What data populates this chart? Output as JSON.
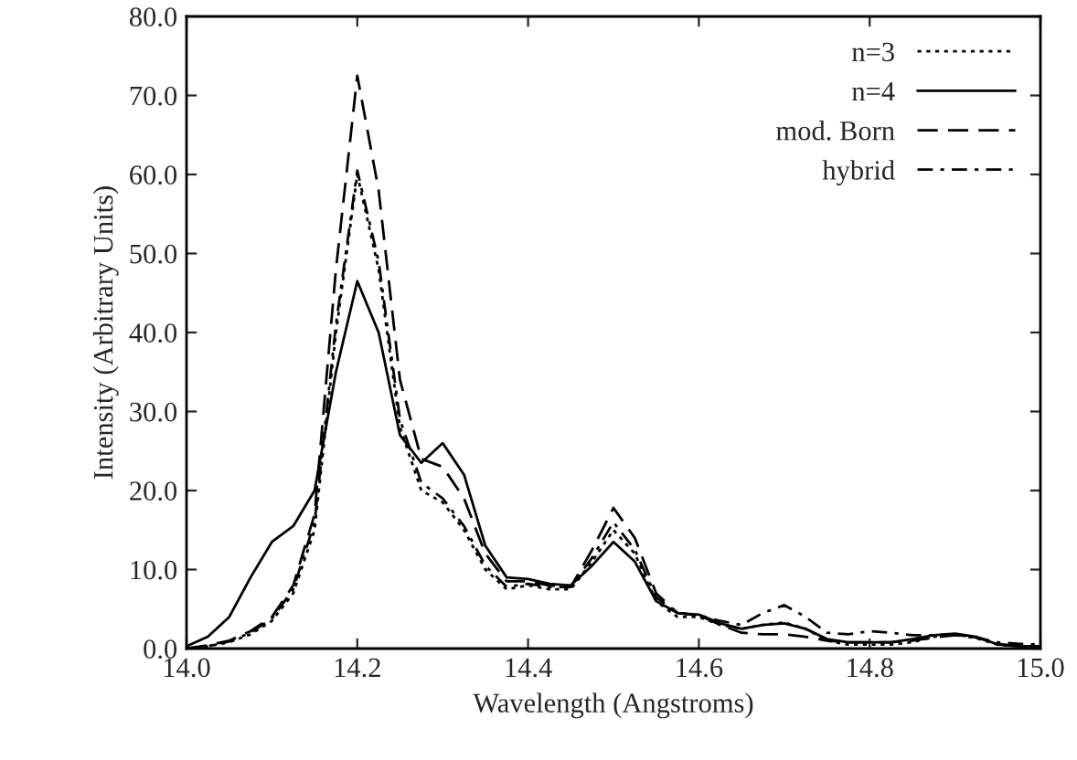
{
  "chart_data": {
    "type": "line",
    "xlabel": "Wavelength (Angstroms)",
    "ylabel": "Intensity (Arbitrary Units)",
    "x": [
      14.0,
      14.025,
      14.05,
      14.075,
      14.1,
      14.125,
      14.15,
      14.175,
      14.2,
      14.225,
      14.25,
      14.275,
      14.3,
      14.325,
      14.35,
      14.375,
      14.4,
      14.425,
      14.45,
      14.475,
      14.5,
      14.525,
      14.55,
      14.575,
      14.6,
      14.625,
      14.65,
      14.675,
      14.7,
      14.725,
      14.75,
      14.775,
      14.8,
      14.825,
      14.85,
      14.875,
      14.9,
      14.925,
      14.95,
      14.975,
      15.0
    ],
    "series": [
      {
        "name": "n=3",
        "color": "#000000",
        "line_style": "dotted",
        "values": [
          0,
          0.3,
          0.8,
          1.8,
          3.5,
          7,
          15,
          40,
          60,
          48,
          28,
          20,
          18.5,
          15,
          10,
          7.5,
          8,
          7.5,
          7.5,
          11,
          15,
          12,
          6,
          4,
          4,
          3,
          2.5,
          3,
          3.3,
          2.5,
          1,
          0.5,
          0.5,
          0.5,
          0.8,
          1.5,
          1.8,
          1.3,
          0.5,
          0.3,
          0.2
        ]
      },
      {
        "name": "n=4",
        "color": "#000000",
        "line_style": "solid",
        "values": [
          0.3,
          1.5,
          4,
          9,
          13.5,
          15.5,
          20,
          35,
          46.5,
          40,
          27,
          23.5,
          26,
          22,
          13,
          9,
          8.8,
          8.2,
          8,
          10.5,
          13.5,
          11,
          6,
          4.5,
          4.3,
          3.2,
          2.5,
          3,
          3.2,
          2.5,
          1.2,
          0.8,
          0.8,
          0.8,
          1.2,
          1.7,
          1.9,
          1.5,
          0.5,
          0.3,
          0.3
        ]
      },
      {
        "name": "mod. Born",
        "color": "#000000",
        "line_style": "dashed",
        "values": [
          0,
          0.4,
          1,
          2.2,
          4,
          8,
          17,
          48,
          72.5,
          58,
          34,
          24,
          23,
          19,
          12,
          8.5,
          8.5,
          8,
          7.8,
          12.5,
          17.8,
          14,
          7,
          4.5,
          4.2,
          3,
          2,
          1.8,
          1.8,
          1.5,
          1,
          0.8,
          0.8,
          0.8,
          1,
          1.4,
          1.7,
          1.4,
          0.6,
          0.3,
          0.2
        ]
      },
      {
        "name": "hybrid",
        "color": "#000000",
        "line_style": "dashdot",
        "values": [
          0,
          0.3,
          0.9,
          2,
          3.8,
          7.5,
          16,
          41,
          60.5,
          49,
          29,
          21,
          19,
          15.5,
          10.5,
          7.8,
          8.2,
          7.8,
          7.8,
          11.5,
          16,
          12.5,
          6.5,
          4.5,
          4.2,
          3.5,
          3,
          4.5,
          5.5,
          4,
          2,
          1.8,
          2.2,
          2,
          1.7,
          1.7,
          1.8,
          1.4,
          0.8,
          0.6,
          0.5
        ]
      }
    ],
    "xlim": [
      14.0,
      15.0
    ],
    "xticks": [
      {
        "value": 14.0,
        "label": "14.0"
      },
      14.2,
      14.4,
      14.6,
      14.8,
      {
        "value": 15.0,
        "label": "15.0"
      }
    ],
    "ylim": [
      0,
      80
    ],
    "yticks": [
      {
        "value": 0,
        "label": "0.0"
      },
      {
        "value": 10,
        "label": "10.0"
      },
      {
        "value": 20,
        "label": "20.0"
      },
      {
        "value": 30,
        "label": "30.0"
      },
      {
        "value": 40,
        "label": "40.0"
      },
      {
        "value": 50,
        "label": "50.0"
      },
      {
        "value": 60,
        "label": "60.0"
      },
      {
        "value": 70,
        "label": "70.0"
      },
      {
        "value": 80,
        "label": "80.0"
      }
    ],
    "legend": "top right",
    "grid": false
  }
}
